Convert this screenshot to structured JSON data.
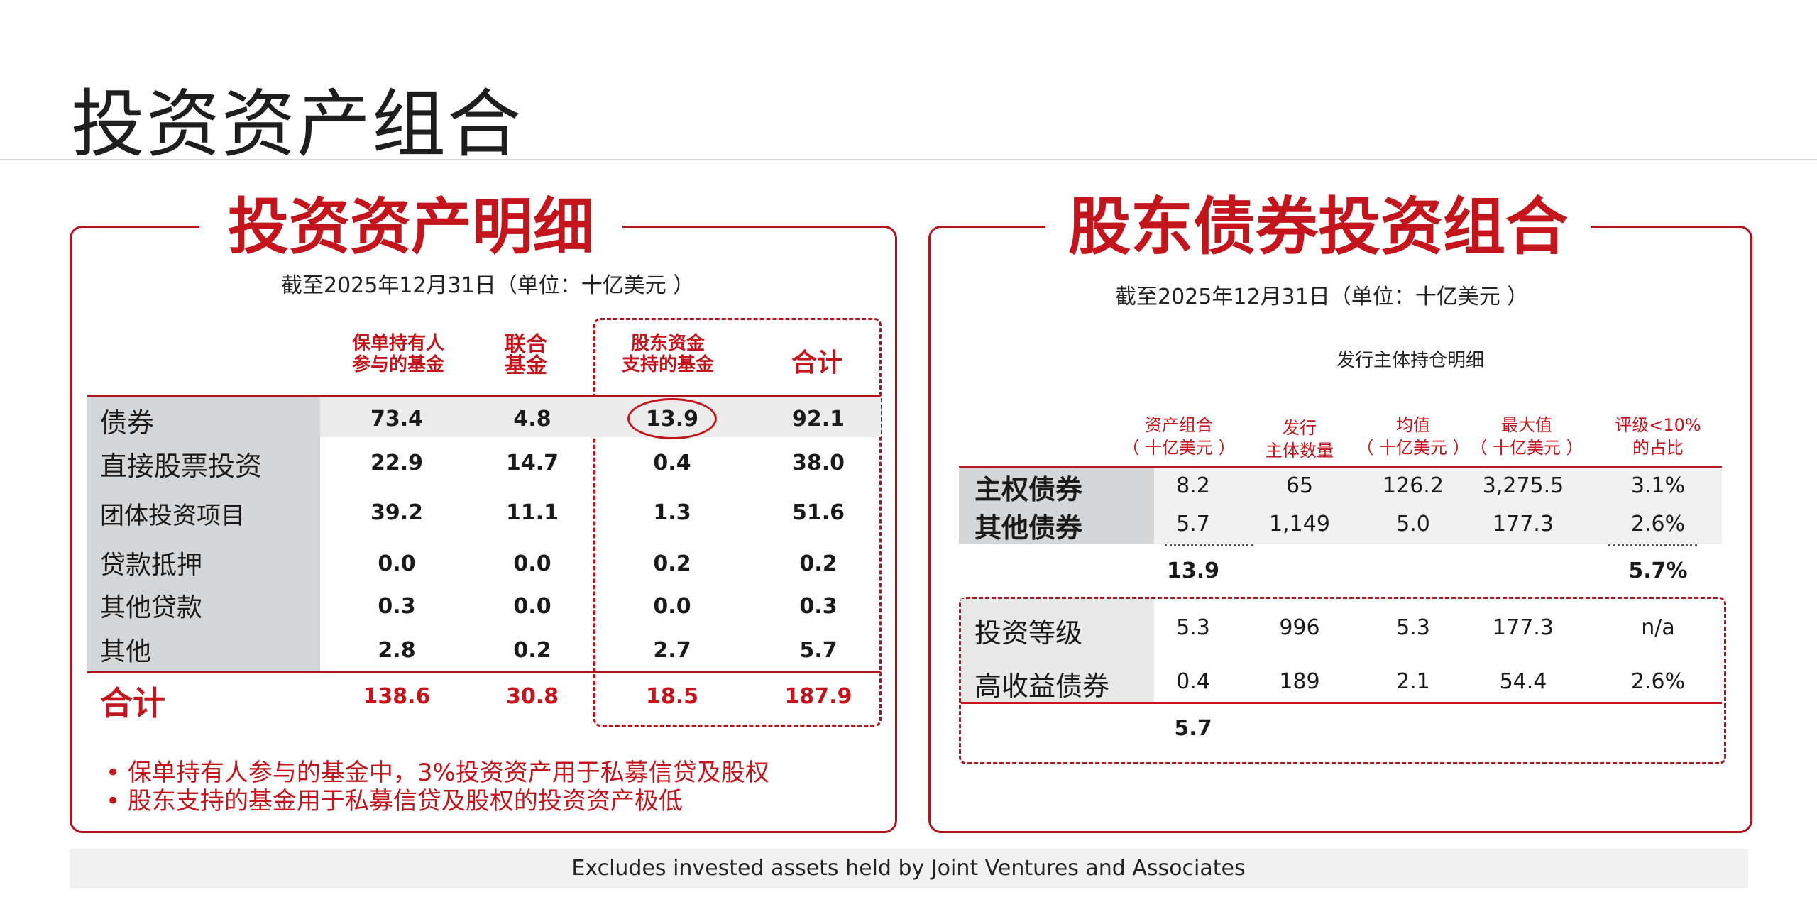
{
  "page_title": "投资资产组合",
  "left": {
    "title": "投资资产明细",
    "asof": "截至2025年12月31日（单位：十亿美元 ）",
    "headers": {
      "c1": [
        "保单持有人",
        "参与的基金"
      ],
      "c2": [
        "联合",
        "基金"
      ],
      "c3": [
        "股东资金",
        "支持的基金"
      ],
      "c4": "合计"
    },
    "rows": [
      {
        "label": "债券",
        "v": [
          "73.4",
          "4.8",
          "13.9",
          "92.1"
        ]
      },
      {
        "label": "直接股票投资",
        "v": [
          "22.9",
          "14.7",
          "0.4",
          "38.0"
        ]
      },
      {
        "label": "团体投资项目",
        "v": [
          "39.2",
          "11.1",
          "1.3",
          "51.6"
        ]
      },
      {
        "label": "贷款抵押",
        "v": [
          "0.0",
          "0.0",
          "0.2",
          "0.2"
        ]
      },
      {
        "label": "其他贷款",
        "v": [
          "0.3",
          "0.0",
          "0.0",
          "0.3"
        ]
      },
      {
        "label": "其他",
        "v": [
          "2.8",
          "0.2",
          "2.7",
          "5.7"
        ]
      }
    ],
    "total": {
      "label": "合计",
      "v": [
        "138.6",
        "30.8",
        "18.5",
        "187.9"
      ]
    },
    "bullets": [
      "• 保单持有人参与的基金中，3%投资资产用于私募信贷及股权",
      "• 股东支持的基金用于私募信贷及股权的投资资产极低"
    ]
  },
  "right": {
    "title": "股东债券投资组合",
    "asof": "截至2025年12月31日（单位：十亿美元 ）",
    "subtitle": "发行主体持仓明细",
    "headers": [
      [
        "资产组合",
        "（ 十亿美元 ）"
      ],
      [
        "发行",
        "主体数量"
      ],
      [
        "均值",
        "（ 十亿美元 ）"
      ],
      [
        "最大值",
        "（ 十亿美元 ）"
      ],
      [
        "评级<10%",
        "的占比"
      ]
    ],
    "rows_a": [
      {
        "label": "主权债券",
        "v": [
          "8.2",
          "65",
          "126.2",
          "3,275.5",
          "3.1%"
        ]
      },
      {
        "label": "其他债券",
        "v": [
          "5.7",
          "1,149",
          "5.0",
          "177.3",
          "2.6%"
        ]
      }
    ],
    "subtotal_a": {
      "v1": "13.9",
      "v5": "5.7%"
    },
    "rows_b": [
      {
        "label": "投资等级",
        "v": [
          "5.3",
          "996",
          "5.3",
          "177.3",
          "n/a"
        ]
      },
      {
        "label": "高收益债券",
        "v": [
          "0.4",
          "189",
          "2.1",
          "54.4",
          "2.6%"
        ]
      }
    ],
    "subtotal_b": {
      "v1": "5.7"
    }
  },
  "footnote": "Excludes invested assets held by Joint Ventures and Associates",
  "colors": {
    "accent": "#c4141c",
    "label_bg": "#d5d6d8"
  }
}
